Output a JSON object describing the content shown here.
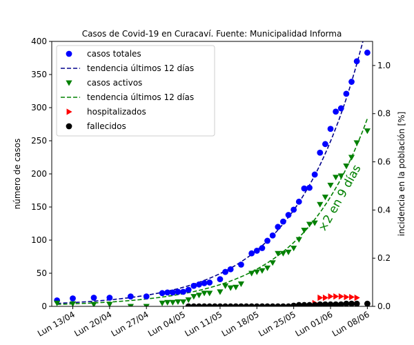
{
  "chart_data": {
    "type": "scatter",
    "title": "Casos de Covid-19 en Curacaví. Fuente: Municipalidad Informa",
    "ylabel": "número de casos",
    "y2label": "incidencia en la población [%]",
    "x_unit": "date",
    "xlim": [
      "2020-04-09",
      "2020-06-09"
    ],
    "ylim": [
      0,
      400
    ],
    "y2lim": [
      0,
      1.1
    ],
    "x_ticks": [
      {
        "date": "2020-04-13",
        "label": "Lun 13/04"
      },
      {
        "date": "2020-04-20",
        "label": "Lun 20/04"
      },
      {
        "date": "2020-04-27",
        "label": "Lun 27/04"
      },
      {
        "date": "2020-05-04",
        "label": "Lun 04/05"
      },
      {
        "date": "2020-05-11",
        "label": "Lun 11/05"
      },
      {
        "date": "2020-05-18",
        "label": "Lun 18/05"
      },
      {
        "date": "2020-05-25",
        "label": "Lun 25/05"
      },
      {
        "date": "2020-06-01",
        "label": "Lun 01/06"
      },
      {
        "date": "2020-06-08",
        "label": "Lun 08/06"
      }
    ],
    "y_ticks": [
      "0",
      "50",
      "100",
      "150",
      "200",
      "250",
      "300",
      "350",
      "400"
    ],
    "y2_ticks": [
      "0.0",
      "0.2",
      "0.4",
      "0.6",
      "0.8",
      "1.0"
    ],
    "legend_position": "upper-left",
    "grid": false,
    "annotation": {
      "text": "×2 en 9 días",
      "color": "#008000"
    },
    "series": [
      {
        "name": "casos totales",
        "kind": "scatter",
        "marker": "circle",
        "color": "#0000ff",
        "points": [
          [
            "2020-04-10",
            9
          ],
          [
            "2020-04-13",
            12
          ],
          [
            "2020-04-17",
            13
          ],
          [
            "2020-04-20",
            13
          ],
          [
            "2020-04-24",
            15
          ],
          [
            "2020-04-27",
            15
          ],
          [
            "2020-04-30",
            20
          ],
          [
            "2020-05-01",
            21
          ],
          [
            "2020-05-02",
            21
          ],
          [
            "2020-05-03",
            22
          ],
          [
            "2020-05-04",
            22
          ],
          [
            "2020-05-05",
            25
          ],
          [
            "2020-05-06",
            31
          ],
          [
            "2020-05-07",
            33
          ],
          [
            "2020-05-08",
            35
          ],
          [
            "2020-05-09",
            36
          ],
          [
            "2020-05-11",
            41
          ],
          [
            "2020-05-12",
            52
          ],
          [
            "2020-05-13",
            56
          ],
          [
            "2020-05-15",
            63
          ],
          [
            "2020-05-17",
            80
          ],
          [
            "2020-05-18",
            84
          ],
          [
            "2020-05-19",
            88
          ],
          [
            "2020-05-20",
            99
          ],
          [
            "2020-05-21",
            107
          ],
          [
            "2020-05-22",
            120
          ],
          [
            "2020-05-23",
            128
          ],
          [
            "2020-05-24",
            138
          ],
          [
            "2020-05-25",
            146
          ],
          [
            "2020-05-26",
            158
          ],
          [
            "2020-05-27",
            178
          ],
          [
            "2020-05-28",
            179
          ],
          [
            "2020-05-29",
            199
          ],
          [
            "2020-05-30",
            232
          ],
          [
            "2020-05-31",
            245
          ],
          [
            "2020-06-01",
            268
          ],
          [
            "2020-06-02",
            294
          ],
          [
            "2020-06-03",
            299
          ],
          [
            "2020-06-04",
            321
          ],
          [
            "2020-06-05",
            339
          ],
          [
            "2020-06-06",
            370
          ],
          [
            "2020-06-08",
            383
          ]
        ]
      },
      {
        "name": "tendencia últimos 12 días",
        "kind": "trend",
        "dash": "dashed",
        "color": "#00008b",
        "model": "exponential",
        "anchor": [
          "2020-06-05",
          339
        ],
        "doubling_days": 9.0,
        "from": "2020-04-10",
        "to": "2020-06-09"
      },
      {
        "name": "casos activos",
        "kind": "scatter",
        "marker": "triangle-down",
        "color": "#008000",
        "points": [
          [
            "2020-04-10",
            5
          ],
          [
            "2020-04-13",
            4
          ],
          [
            "2020-04-17",
            3
          ],
          [
            "2020-04-20",
            3
          ],
          [
            "2020-04-24",
            0
          ],
          [
            "2020-04-27",
            0
          ],
          [
            "2020-04-30",
            5
          ],
          [
            "2020-05-01",
            6
          ],
          [
            "2020-05-02",
            6
          ],
          [
            "2020-05-03",
            7
          ],
          [
            "2020-05-04",
            7
          ],
          [
            "2020-05-05",
            10
          ],
          [
            "2020-05-06",
            15
          ],
          [
            "2020-05-07",
            17
          ],
          [
            "2020-05-08",
            20
          ],
          [
            "2020-05-09",
            20
          ],
          [
            "2020-05-11",
            22
          ],
          [
            "2020-05-12",
            31
          ],
          [
            "2020-05-13",
            28
          ],
          [
            "2020-05-14",
            29
          ],
          [
            "2020-05-15",
            34
          ],
          [
            "2020-05-17",
            50
          ],
          [
            "2020-05-18",
            52
          ],
          [
            "2020-05-19",
            54
          ],
          [
            "2020-05-20",
            58
          ],
          [
            "2020-05-21",
            66
          ],
          [
            "2020-05-22",
            80
          ],
          [
            "2020-05-23",
            80
          ],
          [
            "2020-05-24",
            82
          ],
          [
            "2020-05-25",
            88
          ],
          [
            "2020-05-26",
            101
          ],
          [
            "2020-05-27",
            115
          ],
          [
            "2020-05-28",
            124
          ],
          [
            "2020-05-29",
            126
          ],
          [
            "2020-05-30",
            154
          ],
          [
            "2020-05-31",
            165
          ],
          [
            "2020-06-01",
            183
          ],
          [
            "2020-06-02",
            195
          ],
          [
            "2020-06-03",
            197
          ],
          [
            "2020-06-04",
            212
          ],
          [
            "2020-06-05",
            225
          ],
          [
            "2020-06-06",
            247
          ],
          [
            "2020-06-08",
            265
          ]
        ]
      },
      {
        "name": "tendencia últimos 12 días",
        "kind": "trend",
        "dash": "dashed",
        "color": "#008000",
        "model": "exponential",
        "anchor": [
          "2020-06-05",
          225
        ],
        "doubling_days": 9.0,
        "from": "2020-04-10",
        "to": "2020-06-08"
      },
      {
        "name": "hospitalizados",
        "kind": "scatter",
        "marker": "triangle-right",
        "color": "#ff0000",
        "points": [
          [
            "2020-05-29",
            5
          ],
          [
            "2020-05-30",
            13
          ],
          [
            "2020-05-31",
            13
          ],
          [
            "2020-06-01",
            15
          ],
          [
            "2020-06-02",
            15
          ],
          [
            "2020-06-03",
            15
          ],
          [
            "2020-06-04",
            14
          ],
          [
            "2020-06-05",
            14
          ],
          [
            "2020-06-06",
            13
          ]
        ]
      },
      {
        "name": "fallecidos",
        "kind": "scatter",
        "marker": "circle",
        "color": "#000000",
        "points": [
          [
            "2020-05-05",
            0
          ],
          [
            "2020-05-06",
            0
          ],
          [
            "2020-05-07",
            0
          ],
          [
            "2020-05-08",
            0
          ],
          [
            "2020-05-09",
            0
          ],
          [
            "2020-05-10",
            0
          ],
          [
            "2020-05-11",
            0
          ],
          [
            "2020-05-12",
            0
          ],
          [
            "2020-05-13",
            0
          ],
          [
            "2020-05-14",
            0
          ],
          [
            "2020-05-15",
            0
          ],
          [
            "2020-05-16",
            0
          ],
          [
            "2020-05-17",
            0
          ],
          [
            "2020-05-18",
            0
          ],
          [
            "2020-05-19",
            0
          ],
          [
            "2020-05-20",
            0
          ],
          [
            "2020-05-21",
            0
          ],
          [
            "2020-05-22",
            0
          ],
          [
            "2020-05-23",
            0
          ],
          [
            "2020-05-24",
            0
          ],
          [
            "2020-05-25",
            1
          ],
          [
            "2020-05-26",
            2
          ],
          [
            "2020-05-27",
            2
          ],
          [
            "2020-05-28",
            2
          ],
          [
            "2020-05-29",
            2
          ],
          [
            "2020-05-30",
            3
          ],
          [
            "2020-05-31",
            3
          ],
          [
            "2020-06-01",
            3
          ],
          [
            "2020-06-02",
            3
          ],
          [
            "2020-06-03",
            3
          ],
          [
            "2020-06-04",
            4
          ],
          [
            "2020-06-05",
            4
          ],
          [
            "2020-06-06",
            4
          ],
          [
            "2020-06-08",
            4
          ]
        ]
      }
    ]
  }
}
